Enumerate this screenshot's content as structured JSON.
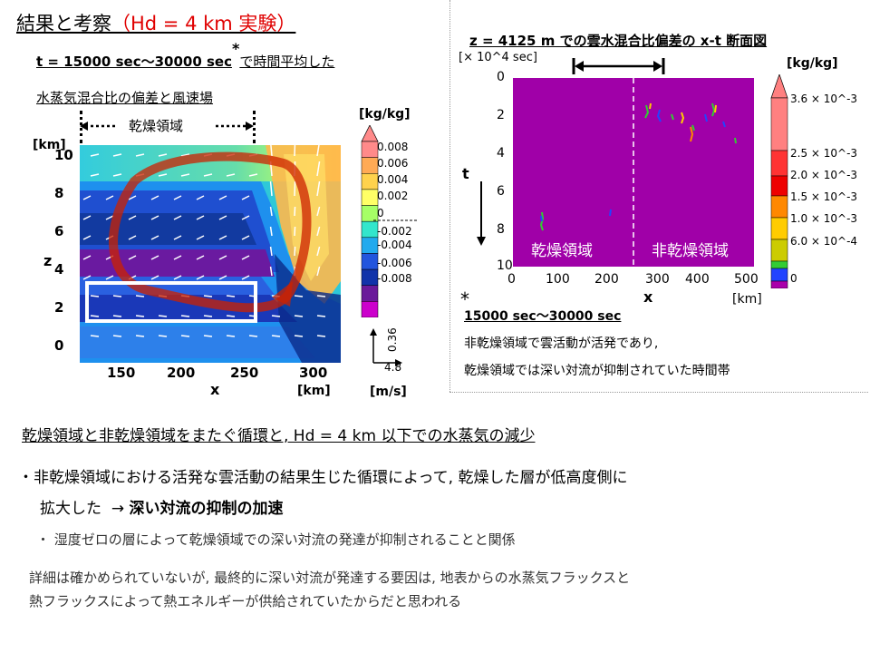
{
  "title": {
    "prefix": "結果と考察",
    "highlight": "（Hd = 4 km 実験）"
  },
  "left_panel": {
    "subtitle": "t = 15000 sec～30000 sec",
    "subtitle_asterisk": "*",
    "subtitle_suffix": "で時間平均した",
    "caption": "水蒸気混合比の偏差と風速場",
    "dry_region_label": "乾燥領域",
    "y_unit": "[km]",
    "y_axis_label": "z",
    "y_ticks": [
      "10",
      "8",
      "6",
      "4",
      "2",
      "0"
    ],
    "x_axis_label": "x",
    "x_unit": "[km]",
    "x_ticks": [
      "150",
      "200",
      "250",
      "300"
    ],
    "colorbar_unit": "[kg/kg]",
    "colorbar_labels": [
      "0.008",
      "0.006",
      "0.004",
      "0.002",
      "0",
      "-0.002",
      "-0.004",
      "-0.006",
      "-0.008"
    ],
    "colorbar_colors": [
      "#ff8a8a",
      "#ffaa55",
      "#ffd24d",
      "#ffff66",
      "#a6ff66",
      "#33e6cc",
      "#22aaee",
      "#2255dd",
      "#1133aa",
      "#6a1a9a",
      "#cc00cc"
    ],
    "vector_vertical": "0.36",
    "vector_horizontal": "4.8",
    "vector_unit": "[m/s]"
  },
  "right_panel": {
    "title": "z = 4125 m での雲水混合比偏差の x-t 断面図",
    "y_unit": "[× 10^4 sec]",
    "y_axis_label": "t",
    "y_ticks": [
      "0",
      "2",
      "4",
      "6",
      "8",
      "10"
    ],
    "x_axis_label": "x",
    "x_unit": "[km]",
    "x_ticks": [
      "0",
      "100",
      "200",
      "300",
      "400",
      "500"
    ],
    "dry_label": "乾燥領域",
    "nondry_label": "非乾燥領域",
    "colorbar_unit": "[kg/kg]",
    "colorbar_labels": [
      "3.6 × 10^-3",
      "2.5 × 10^-3",
      "2.0 × 10^-3",
      "1.5 × 10^-3",
      "1.0 × 10^-3",
      "6.0 × 10^-4",
      "0"
    ],
    "colorbar_colors": [
      "#ff8080",
      "#ff3333",
      "#ee0000",
      "#ff8800",
      "#ffcc00",
      "#cccc00",
      "#33cc33",
      "#2244ff",
      "#aa00aa"
    ],
    "plot_bg": "#a000a8",
    "note_asterisk": "*",
    "note_period": "15000 sec～30000 sec",
    "note_line1": "非乾燥領域で雲活動が活発であり,",
    "note_line2": "乾燥領域では深い対流が抑制されていた時間帯"
  },
  "summary": {
    "heading": "乾燥領域と非乾燥領域をまたぐ循環と, Hd = 4 km 以下での水蒸気の減少",
    "bullet_marker": "・",
    "bullet_line1": "非乾燥領域における活発な雲活動の結果生じた循環によって, 乾燥した層が低高度側に",
    "bullet_line2_prefix": "拡大した",
    "bullet_line2_arrow": "→",
    "bullet_line2_bold": "深い対流の抑制の加速",
    "sub_bullet_marker": "・",
    "sub_bullet": "湿度ゼロの層によって乾燥領域での深い対流の発達が抑制されることと関係",
    "note_line1": "詳細は確かめられていないが, 最終的に深い対流が発達する要因は, 地表からの水蒸気フラックスと",
    "note_line2": "熱フラックスによって熱エネルギーが供給されていたからだと思われる"
  }
}
